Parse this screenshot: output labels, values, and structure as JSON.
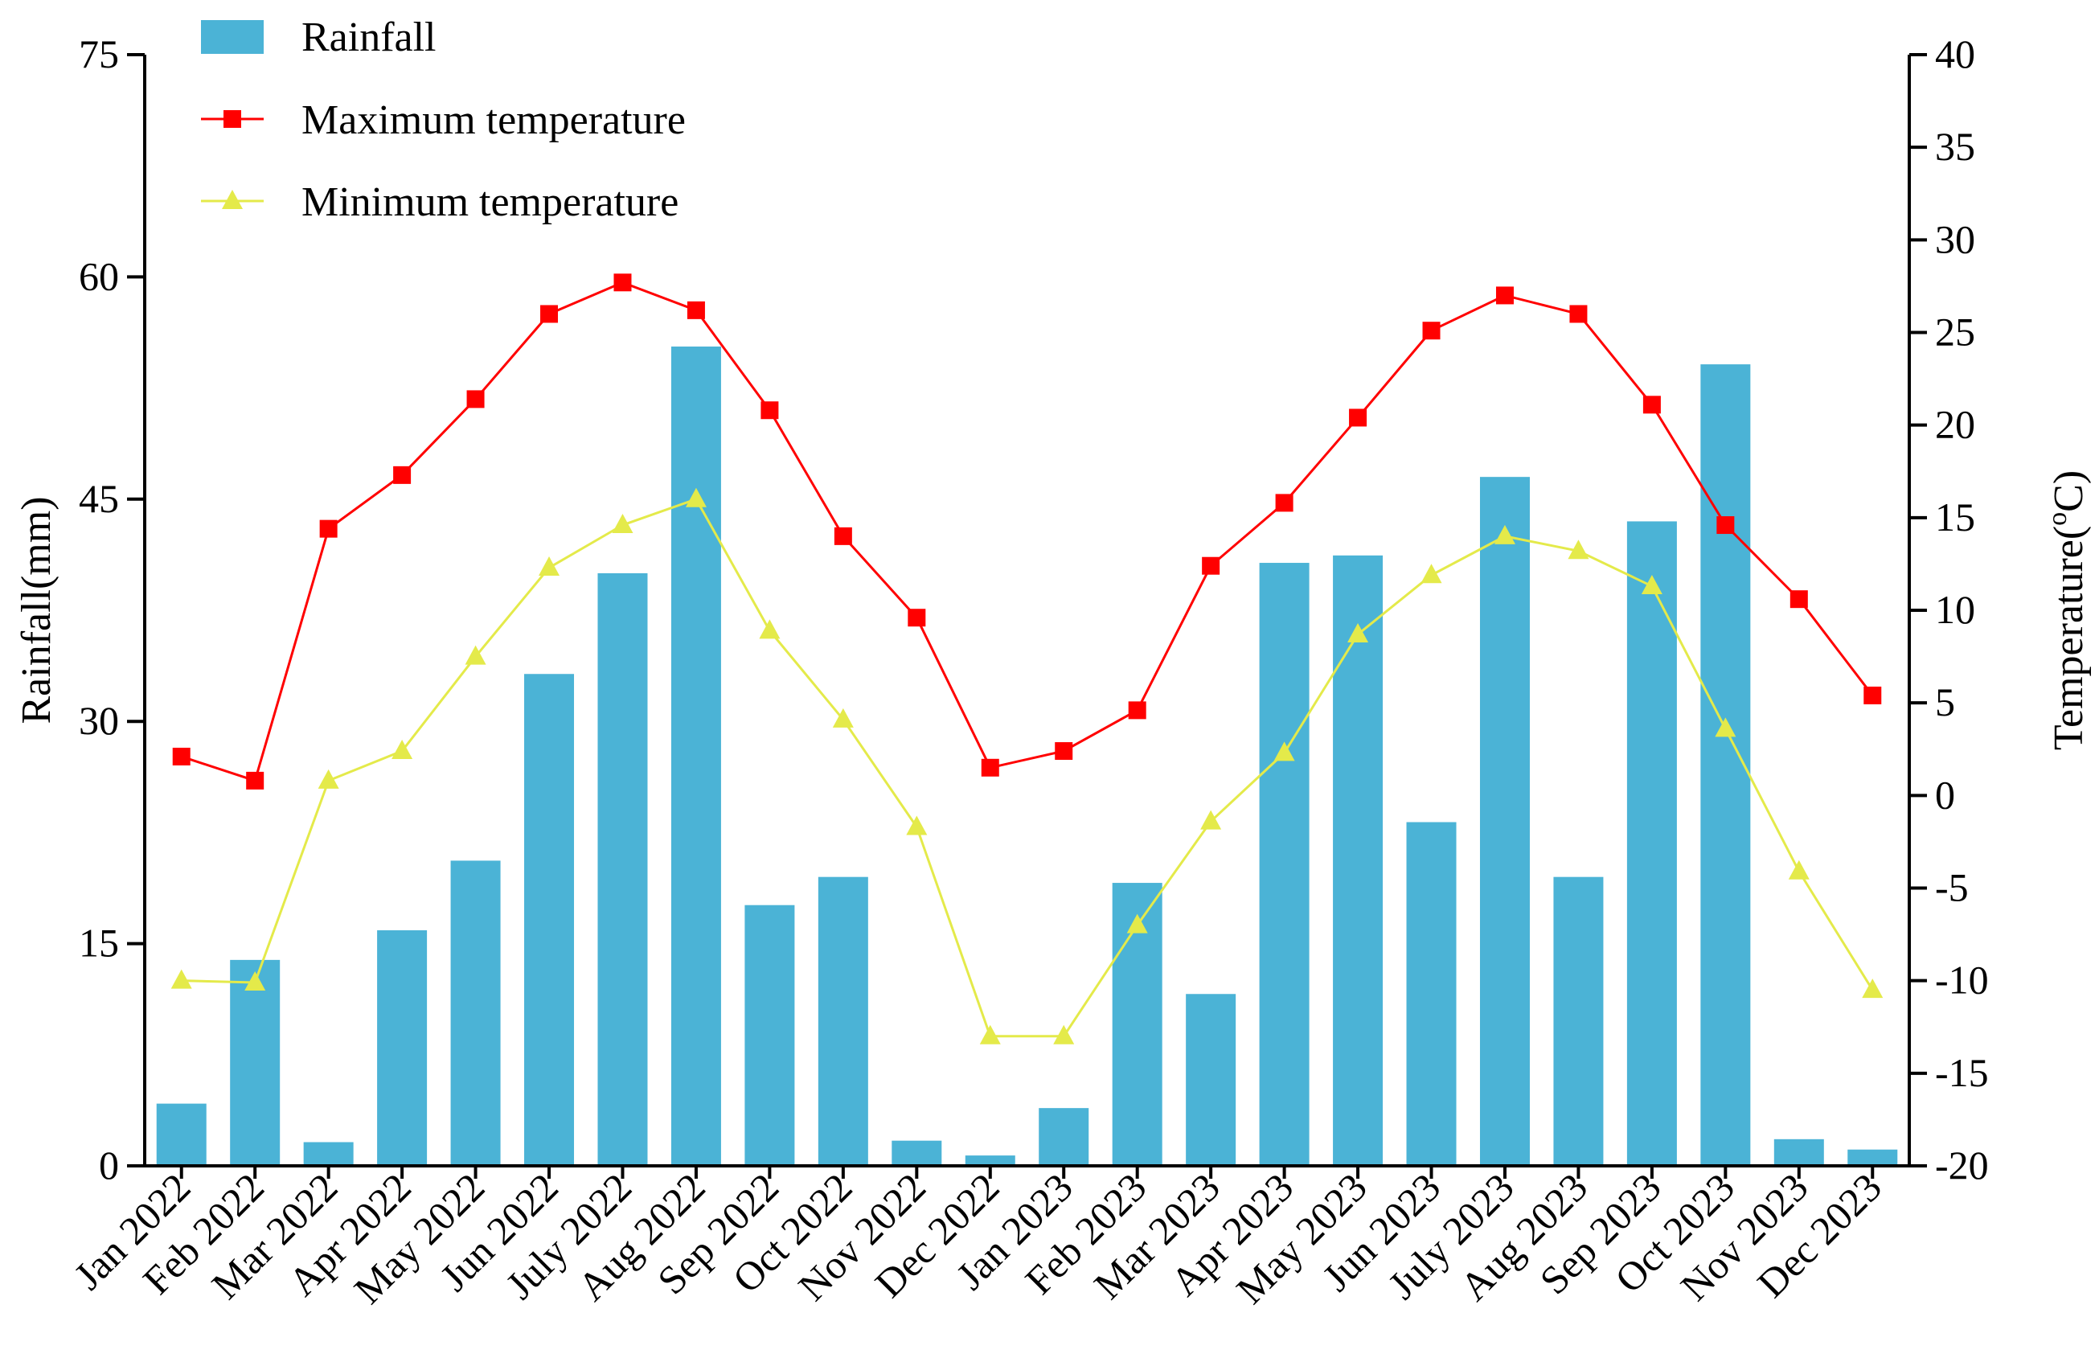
{
  "chart_data": {
    "type": "bar",
    "categories": [
      "Jan 2022",
      "Feb 2022",
      "Mar  2022",
      "Apr 2022",
      "May 2022",
      "Jun 2022",
      "July 2022",
      "Aug 2022",
      "Sep 2022",
      "Oct 2022",
      "Nov 2022",
      "Dec 2022",
      "Jan 2023",
      "Feb 2023",
      "Mar 2023",
      "Apr 2023",
      "May 2023",
      "Jun 2023",
      "July 2023",
      "Aug 2023",
      "Sep 2023",
      "Oct 2023",
      "Nov 2023",
      "Dec 2023"
    ],
    "series": [
      {
        "name": "Rainfall",
        "type": "bar",
        "axis": "left",
        "color": "#4bb3d6",
        "values": [
          4.2,
          13.9,
          1.6,
          15.9,
          20.6,
          33.2,
          40.0,
          55.3,
          17.6,
          19.5,
          1.7,
          0.7,
          3.9,
          19.1,
          11.6,
          40.7,
          41.2,
          23.2,
          46.5,
          19.5,
          43.5,
          54.1,
          1.8,
          1.1
        ]
      },
      {
        "name": "Maximum temperature",
        "type": "line",
        "axis": "right",
        "color": "#ff0000",
        "marker": "square",
        "values": [
          2.1,
          0.8,
          14.4,
          17.3,
          21.4,
          26.0,
          27.7,
          26.2,
          20.8,
          14.0,
          9.6,
          1.5,
          2.4,
          4.6,
          12.4,
          15.8,
          20.4,
          25.1,
          27.0,
          26.0,
          21.1,
          14.6,
          10.6,
          5.4
        ]
      },
      {
        "name": "Minimum temperature",
        "type": "line",
        "axis": "right",
        "color": "#e4ea4a",
        "marker": "triangle",
        "values": [
          -10.0,
          -10.1,
          0.8,
          2.4,
          7.5,
          12.3,
          14.6,
          16.0,
          8.9,
          4.1,
          -1.7,
          -13.0,
          -13.0,
          -7.0,
          -1.4,
          2.3,
          8.7,
          11.9,
          14.0,
          13.2,
          11.3,
          3.6,
          -4.1,
          -10.5
        ]
      }
    ],
    "left_axis": {
      "label": "Rainfall(mm)",
      "min": 0,
      "max": 75,
      "ticks": [
        0,
        15,
        30,
        45,
        60,
        75
      ]
    },
    "right_axis": {
      "label": "Temperature(°C)",
      "label_main": "Temperature(",
      "label_sup": "o",
      "label_end": "C)",
      "min": -20,
      "max": 40,
      "ticks": [
        -20,
        -15,
        -10,
        -5,
        0,
        5,
        10,
        15,
        20,
        25,
        30,
        35,
        40
      ]
    },
    "legend": {
      "position": "top-left",
      "entries": [
        "Rainfall",
        "Maximum temperature",
        "Minimum temperature"
      ]
    },
    "grid": false
  }
}
